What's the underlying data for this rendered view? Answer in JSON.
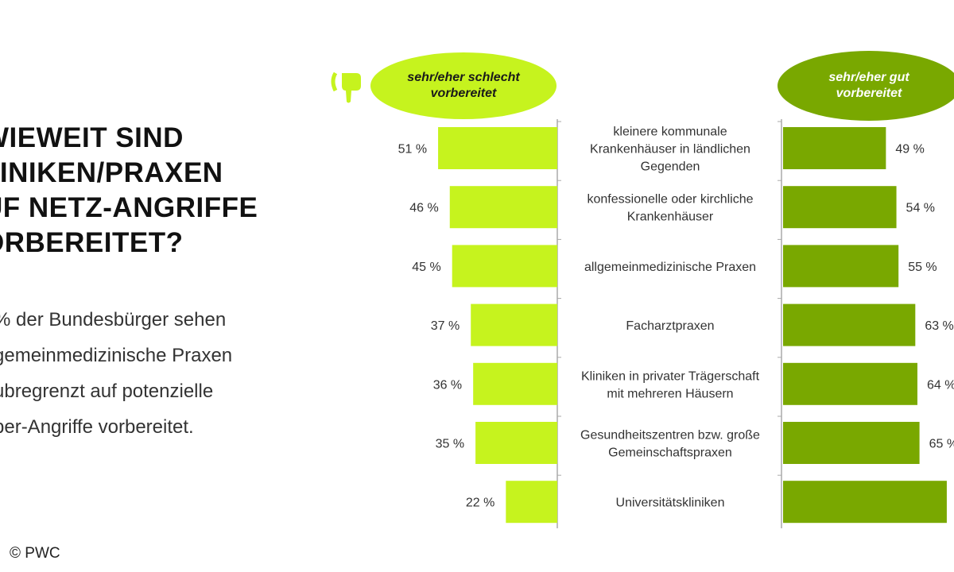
{
  "title_lines": [
    "WIEWEIT SIND",
    "LINIKEN/PRAXEN",
    "UF NETZ-ANGRIFFE",
    "ORBEREITET?"
  ],
  "body_lines": [
    "% der Bundesbürger sehen",
    "gemeinmedizinische Praxen",
    "ubregrenzt auf potenzielle",
    "ber-Angriffe vorbereitet."
  ],
  "credit": "© PWC",
  "colors": {
    "bad": "#c6f31e",
    "good": "#79a800"
  },
  "chart_data": {
    "type": "bar",
    "categories": [
      "kleinere kommunale Krankenhäuser in ländlichen Gegenden",
      "konfessionelle oder kirchliche Krankenhäuser",
      "allgemeinmedizinische Praxen",
      "Facharztpraxen",
      "Kliniken in privater Trägerschaft mit mehreren Häusern",
      "Gesundheitszentren bzw. große Gemeinschaftspraxen",
      "Universitätskliniken"
    ],
    "category_lines": [
      [
        "kleinere kommunale",
        "Krankenhäuser in ländlichen",
        "Gegenden"
      ],
      [
        "konfessionelle oder kirchliche",
        "Krankenhäuser"
      ],
      [
        "allgemeinmedizinische Praxen"
      ],
      [
        "Facharztpraxen"
      ],
      [
        "Kliniken in privater Trägerschaft",
        "mit mehreren Häusern"
      ],
      [
        "Gesundheitszentren bzw. große",
        "Gemeinschaftspraxen"
      ],
      [
        "Universitätskliniken"
      ]
    ],
    "series": [
      {
        "name": "sehr/eher schlecht vorbereitet",
        "name_lines": [
          "sehr/eher schlecht",
          "vorbereitet"
        ],
        "values": [
          51,
          46,
          45,
          37,
          36,
          35,
          22
        ],
        "labels": [
          "51 %",
          "46 %",
          "45 %",
          "37 %",
          "36 %",
          "35 %",
          "22 %"
        ]
      },
      {
        "name": "sehr/eher gut vorbereitet",
        "name_lines": [
          "sehr/eher gut",
          "vorbereitet"
        ],
        "values": [
          49,
          54,
          55,
          63,
          64,
          65,
          78
        ],
        "labels": [
          "49 %",
          "54 %",
          "55 %",
          "63 %",
          "64 %",
          "65 %",
          ""
        ]
      }
    ],
    "unit": "%"
  }
}
